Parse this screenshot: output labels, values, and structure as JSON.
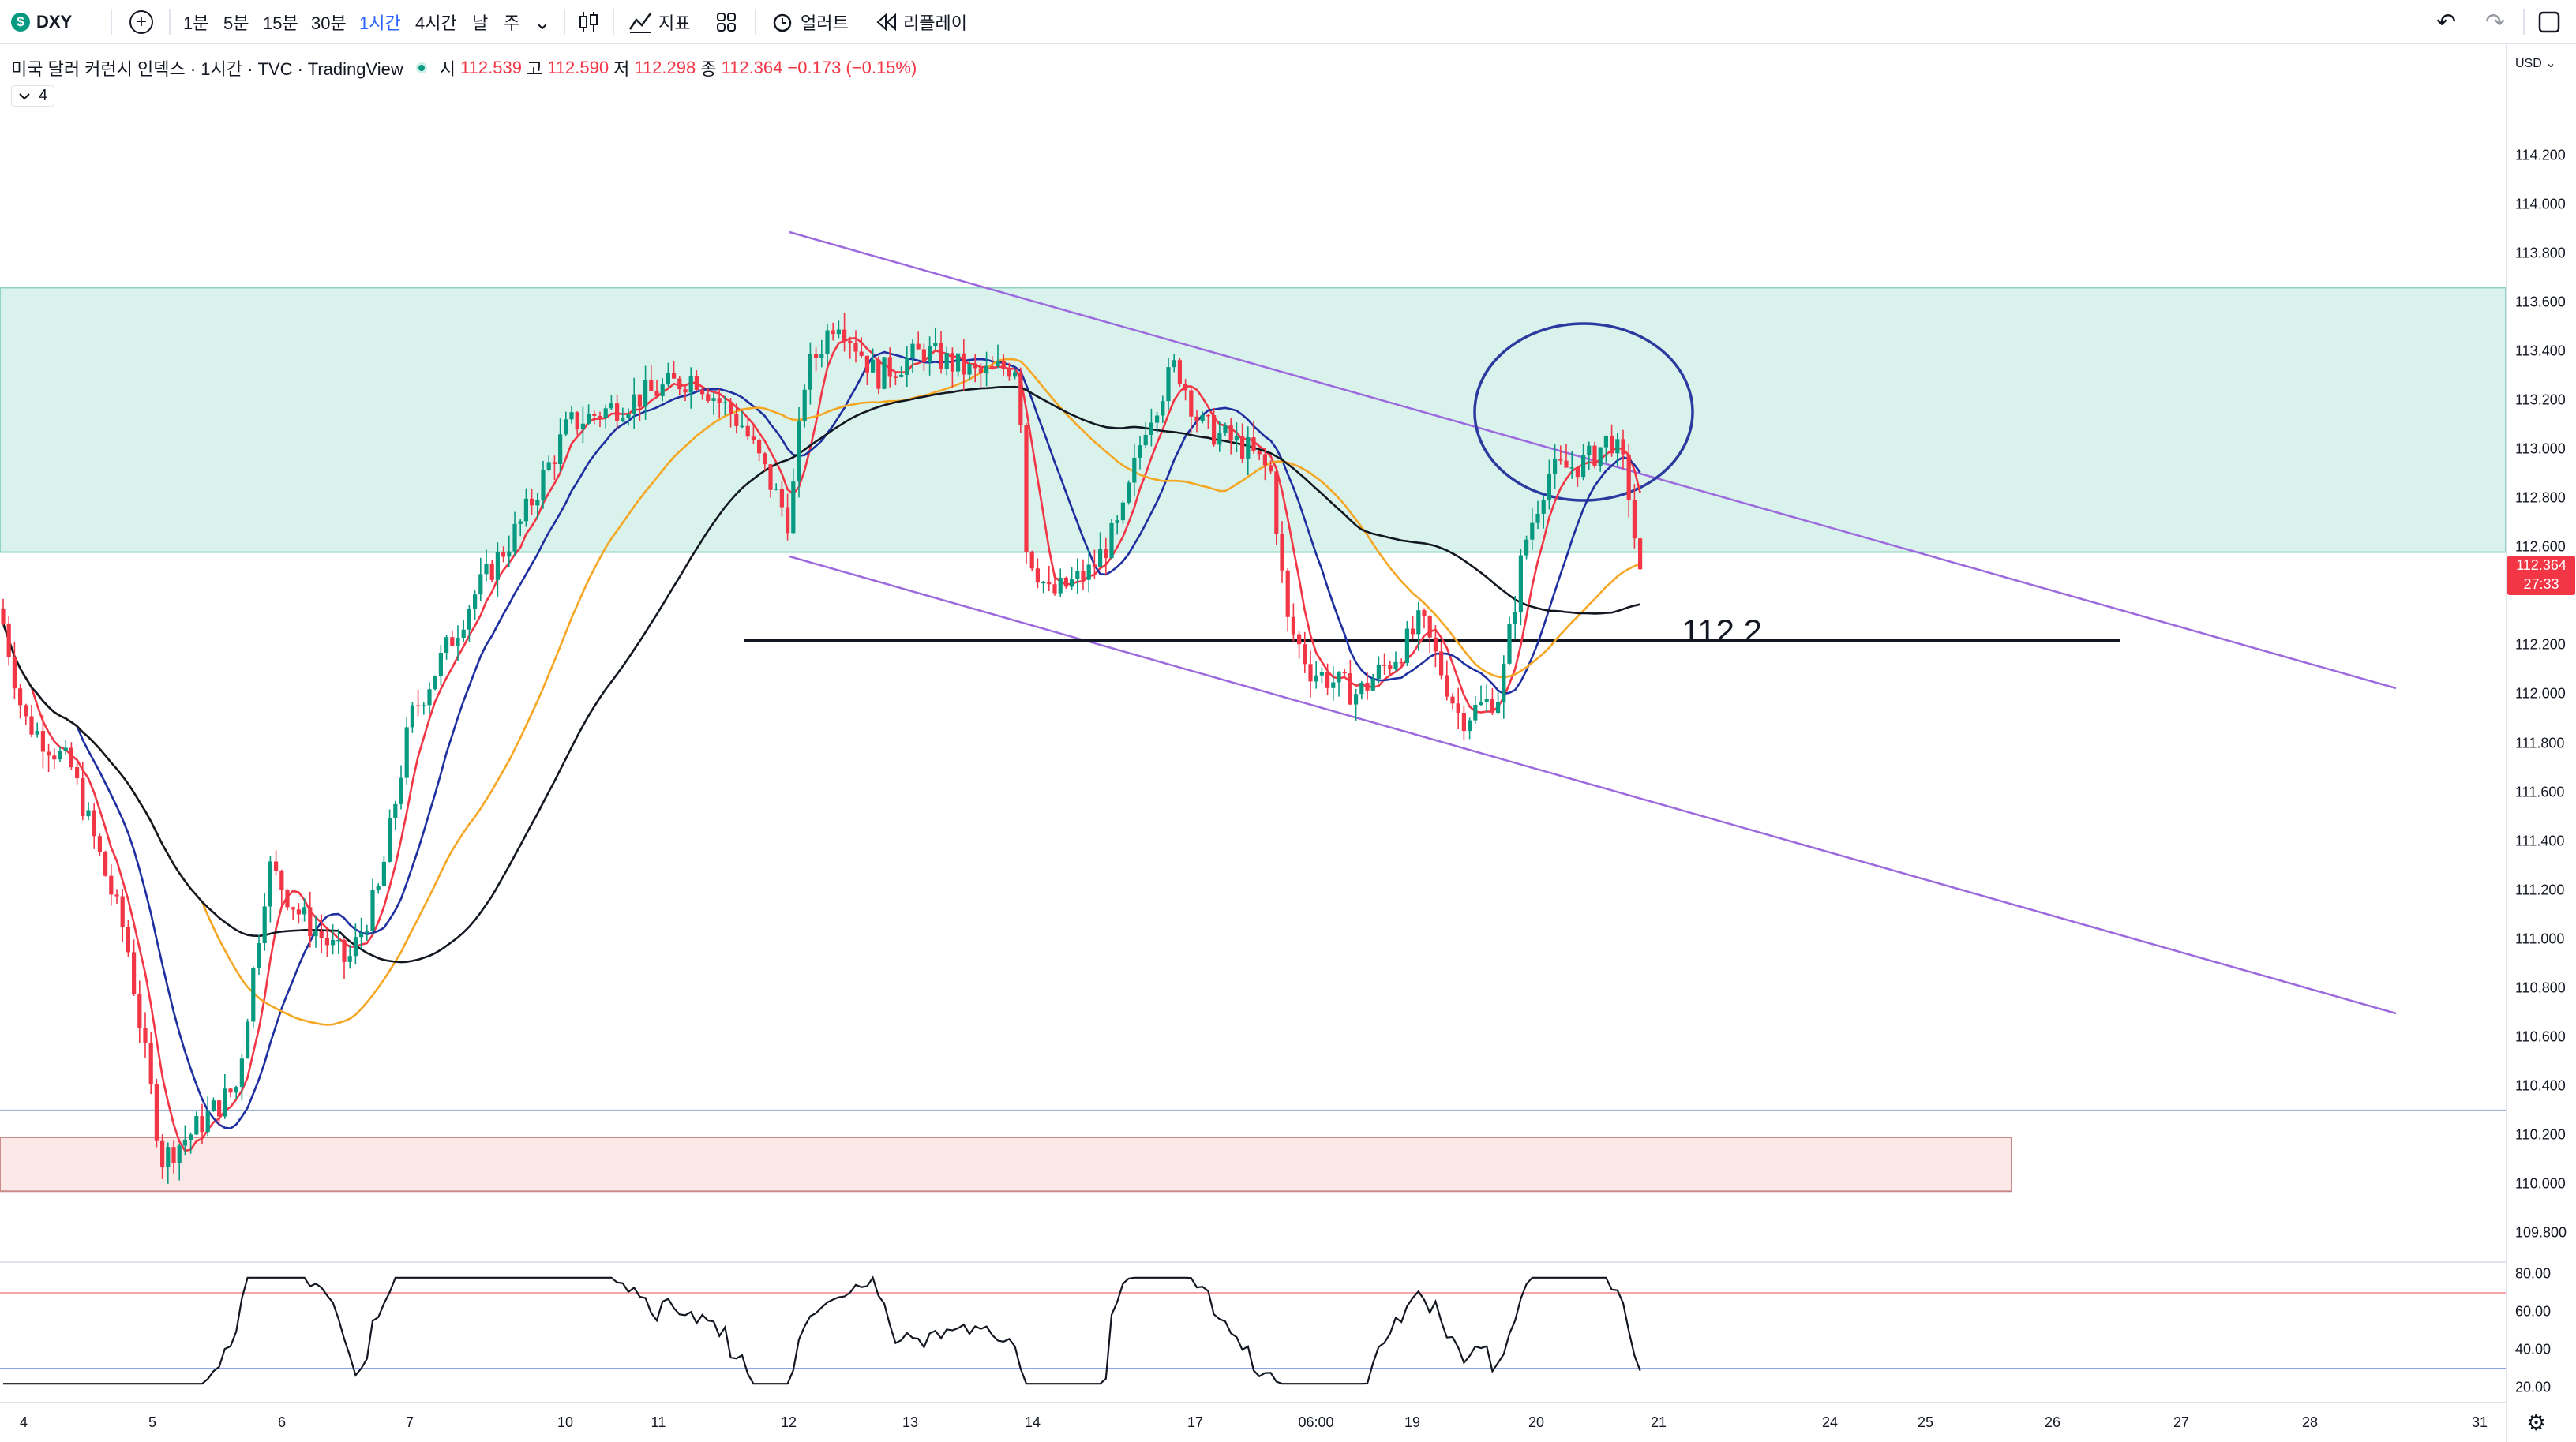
{
  "toolbar": {
    "symbol": "DXY",
    "symbol_badge": "$",
    "add_icon": "+",
    "timeframes": [
      "1분",
      "5분",
      "15분",
      "30분",
      "1시간",
      "4시간",
      "날",
      "주"
    ],
    "active_timeframe": "1시간",
    "dropdown_icon": "⌄",
    "candle_icon": "candlestick-icon",
    "indicators_label": "지표",
    "layouts_icon": "grid-icon",
    "alerts_label": "얼러트",
    "replay_label": "리플레이",
    "undo_icon": "↶",
    "redo_icon": "↷",
    "fullscreen_icon": "fullscreen-icon"
  },
  "legend": {
    "title": "미국 달러 커런시 인덱스 · 1시간 · TVC · TradingView",
    "o_label": "시",
    "o_value": "112.539",
    "h_label": "고",
    "h_value": "112.590",
    "l_label": "저",
    "l_value": "112.298",
    "c_label": "종",
    "c_value": "112.364",
    "change": "−0.173 (−0.15%)",
    "collapse_icon": "chevron-down-icon",
    "indicator_count": "4",
    "status_color": "#089981"
  },
  "price_axis": {
    "currency": "USD",
    "labels": [
      "114.200",
      "114.000",
      "113.800",
      "113.600",
      "113.400",
      "113.200",
      "113.000",
      "112.800",
      "112.600",
      "112.200",
      "112.000",
      "111.800",
      "111.600",
      "111.400",
      "111.200",
      "111.000",
      "110.800",
      "110.600",
      "110.400",
      "110.200",
      "110.000",
      "109.800"
    ],
    "current_price": "112.364",
    "countdown": "27:33"
  },
  "rsi_axis": {
    "labels": [
      "80.00",
      "60.00",
      "40.00",
      "20.00"
    ]
  },
  "time_axis": {
    "labels": [
      "4",
      "5",
      "6",
      "7",
      "10",
      "11",
      "12",
      "13",
      "14",
      "17",
      "06:00",
      "19",
      "20",
      "21",
      "24",
      "25",
      "26",
      "27",
      "28",
      "31"
    ]
  },
  "annotation": {
    "level_label": "112.2"
  },
  "colors": {
    "up": "#089981",
    "down": "#f23645",
    "zone_green": "#d9f2ec",
    "zone_red": "#fde8e8",
    "channel": "#9c6ade",
    "circle": "#2a3a9e",
    "ma_fast": "#f23645",
    "ma_mid": "#1e2fa0",
    "ma_slow": "#f5a623",
    "ma_long": "#131722",
    "accent": "#2962ff"
  }
}
